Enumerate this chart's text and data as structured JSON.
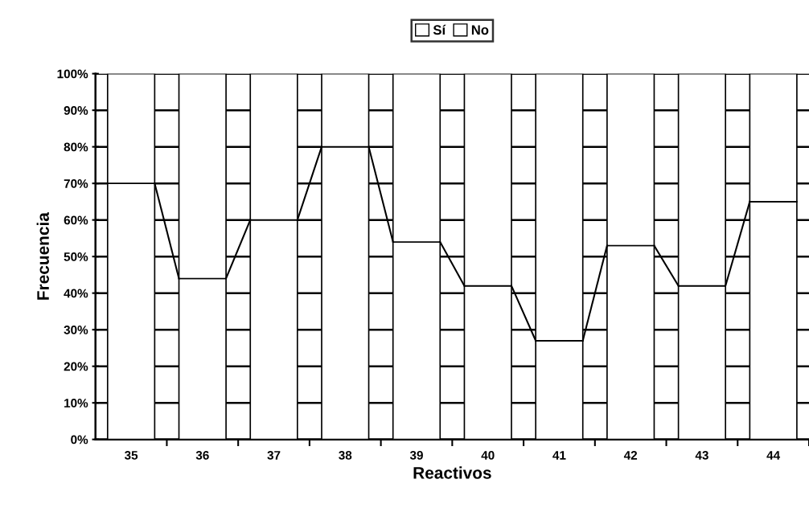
{
  "chart_data": {
    "type": "bar",
    "stacked": true,
    "xlabel": "Reactivos",
    "ylabel": "Frecuencia",
    "categories": [
      "35",
      "36",
      "37",
      "38",
      "39",
      "40",
      "41",
      "42",
      "43",
      "44"
    ],
    "series": [
      {
        "name": "Sí",
        "color": "#ffffff",
        "values": [
          70,
          44,
          60,
          80,
          54,
          42,
          27,
          53,
          42,
          65
        ]
      },
      {
        "name": "No",
        "color": "#ffffff",
        "values": [
          30,
          56,
          40,
          20,
          46,
          58,
          73,
          47,
          58,
          35
        ]
      }
    ],
    "ylim": [
      0,
      100
    ],
    "yticks": [
      {
        "value": 0,
        "label": "0%"
      },
      {
        "value": 10,
        "label": "10%"
      },
      {
        "value": 20,
        "label": "20%"
      },
      {
        "value": 30,
        "label": "30%"
      },
      {
        "value": 40,
        "label": "40%"
      },
      {
        "value": 50,
        "label": "50%"
      },
      {
        "value": 60,
        "label": "60%"
      },
      {
        "value": 70,
        "label": "70%"
      },
      {
        "value": 80,
        "label": "80%"
      },
      {
        "value": 90,
        "label": "90%"
      },
      {
        "value": 100,
        "label": "100%"
      }
    ],
    "grid": "y",
    "legend": "top"
  }
}
